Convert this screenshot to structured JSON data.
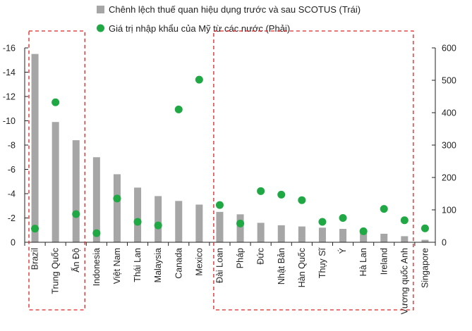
{
  "chart_data": {
    "type": "bar+scatter",
    "legend": {
      "bar_label": "Chênh lệch thuế quan hiệu dụng trước và sau SCOTUS (Trái)",
      "dot_label": "Giá trị nhập khẩu của Mỹ từ các nước (Phải)"
    },
    "categories": [
      "Brazil",
      "Trung Quốc",
      "Ấn Độ",
      "Indonesia",
      "Việt Nam",
      "Thái Lan",
      "Malaysia",
      "Canada",
      "Mexico",
      "Đài Loan",
      "Pháp",
      "Đức",
      "Nhật Bản",
      "Hàn Quốc",
      "Thụy Sĩ",
      "Ý",
      "Hà Lan",
      "Ireland",
      "Vương quốc Anh",
      "Singapore"
    ],
    "series": [
      {
        "name": "Chênh lệch thuế quan hiệu dụng trước và sau SCOTUS (Trái)",
        "type": "bar",
        "axis": "left",
        "values": [
          -15.5,
          -9.9,
          -8.4,
          -7.0,
          -5.6,
          -4.5,
          -3.8,
          -3.4,
          -3.1,
          -2.5,
          -2.3,
          -1.6,
          -1.4,
          -1.3,
          -1.2,
          -1.1,
          -0.9,
          -0.7,
          -0.5,
          -0.2
        ]
      },
      {
        "name": "Giá trị nhập khẩu của Mỹ từ các nước (Phải)",
        "type": "scatter",
        "axis": "right",
        "values": [
          42,
          432,
          87,
          28,
          135,
          63,
          52,
          410,
          502,
          115,
          58,
          158,
          147,
          130,
          63,
          75,
          34,
          103,
          68,
          43
        ]
      }
    ],
    "left_axis": {
      "ylim": [
        0,
        -16
      ],
      "ticks": [
        "0",
        "-2",
        "-4",
        "-6",
        "-8",
        "-10",
        "-12",
        "-14",
        "-16"
      ]
    },
    "right_axis": {
      "ylim": [
        0,
        600
      ],
      "ticks": [
        "0",
        "100",
        "200",
        "300",
        "400",
        "500",
        "600"
      ]
    },
    "highlight_groups": [
      {
        "from": "Brazil",
        "to": "Ấn Độ"
      },
      {
        "from": "Đài Loan",
        "to": "Vương quốc Anh"
      }
    ],
    "colors": {
      "bar": "#a6a6a6",
      "dot": "#1fa843",
      "highlight_border": "#e02020",
      "axis": "#222222"
    }
  }
}
